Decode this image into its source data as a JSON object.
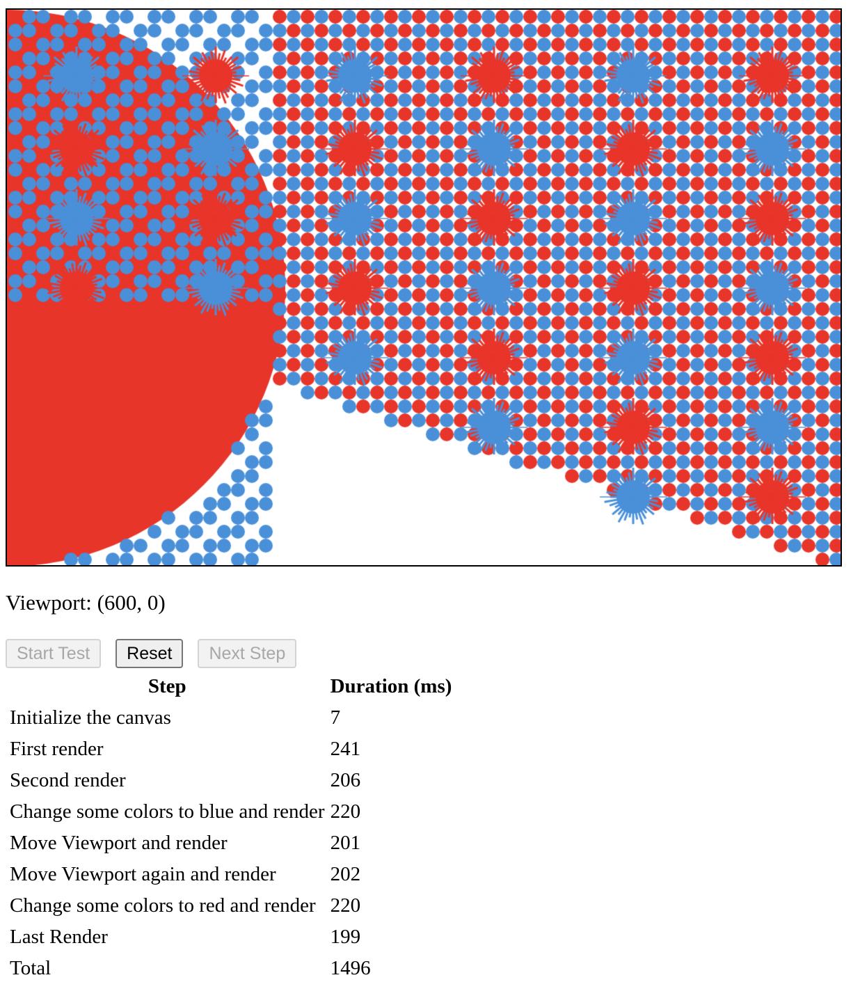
{
  "viewport": {
    "label": "Viewport:",
    "value": "(600, 0)"
  },
  "controls": {
    "start_label": "Start Test",
    "reset_label": "Reset",
    "next_label": "Next Step"
  },
  "table": {
    "headers": {
      "step": "Step",
      "duration": "Duration (ms)"
    },
    "rows": [
      {
        "step": "Initialize the canvas",
        "duration": "7"
      },
      {
        "step": "First render",
        "duration": "241"
      },
      {
        "step": "Second render",
        "duration": "206"
      },
      {
        "step": "Change some colors to blue and render",
        "duration": "220"
      },
      {
        "step": "Move Viewport and render",
        "duration": "201"
      },
      {
        "step": "Move Viewport again and render",
        "duration": "202"
      },
      {
        "step": "Change some colors to red and render",
        "duration": "220"
      },
      {
        "step": "Last Render",
        "duration": "199"
      },
      {
        "step": "Total",
        "duration": "1496"
      }
    ]
  },
  "colors": {
    "red": "#e8352a",
    "blue": "#4a90d9"
  }
}
